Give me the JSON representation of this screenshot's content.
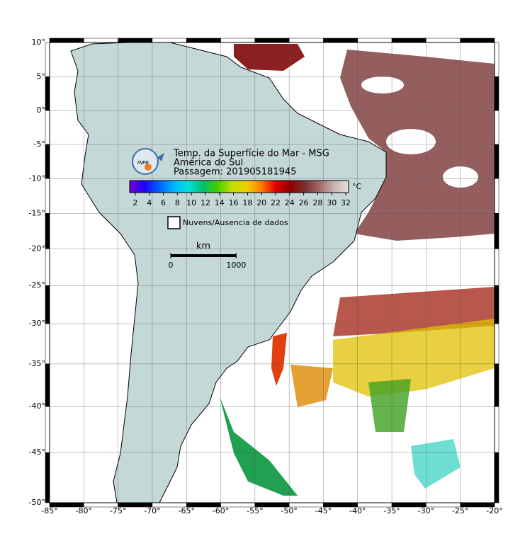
{
  "map": {
    "xlim": [
      -85,
      -20
    ],
    "ylim": [
      -50,
      10
    ],
    "grid": true,
    "lon_ticks": [
      {
        "value": -85,
        "label": "-85°"
      },
      {
        "value": -80,
        "label": "-80°"
      },
      {
        "value": -75,
        "label": "-75°"
      },
      {
        "value": -70,
        "label": "-70°"
      },
      {
        "value": -65,
        "label": "-65°"
      },
      {
        "value": -60,
        "label": "-60°"
      },
      {
        "value": -55,
        "label": "-55°"
      },
      {
        "value": -50,
        "label": "-50°"
      },
      {
        "value": -45,
        "label": "-45°"
      },
      {
        "value": -40,
        "label": "-40°"
      },
      {
        "value": -35,
        "label": "-35°"
      },
      {
        "value": -30,
        "label": "-30°"
      },
      {
        "value": -25,
        "label": "-25°"
      },
      {
        "value": -20,
        "label": "-20°"
      }
    ],
    "lat_ticks": [
      {
        "value": 10,
        "label": "10°"
      },
      {
        "value": 5,
        "label": "5°"
      },
      {
        "value": 0,
        "label": "0°"
      },
      {
        "value": -5,
        "label": "-5°"
      },
      {
        "value": -10,
        "label": "-10°"
      },
      {
        "value": -15,
        "label": "-15°"
      },
      {
        "value": -20,
        "label": "-20°"
      },
      {
        "value": -25,
        "label": "-25°"
      },
      {
        "value": -30,
        "label": "-30°"
      },
      {
        "value": -35,
        "label": "-35°"
      },
      {
        "value": -40,
        "label": "-40°"
      },
      {
        "value": -45,
        "label": "-45°"
      },
      {
        "value": -50,
        "label": "-50°"
      }
    ]
  },
  "legend": {
    "logo": "INPE",
    "title": "Temp. da Superfície do Mar - MSG",
    "region": "América do Sul",
    "pass": "Passagem: 201905181945",
    "colorbar": {
      "unit": "°C",
      "range": [
        1.2,
        32.4
      ],
      "ticks": [
        2,
        4,
        6,
        8,
        10,
        12,
        14,
        16,
        18,
        20,
        22,
        24,
        26,
        28,
        30,
        32
      ],
      "colors": [
        "#7000d0",
        "#2000ff",
        "#0060ff",
        "#00b0ff",
        "#00e0e0",
        "#00c070",
        "#40d000",
        "#c0e000",
        "#f0d000",
        "#ff8000",
        "#e00000",
        "#900000",
        "#7a3030",
        "#a06a6a",
        "#c8b0b0",
        "#e8e0e0"
      ]
    },
    "no_data": "Nuvens/Ausencia de dados",
    "scale": {
      "unit": "km",
      "ticks": [
        0,
        1000
      ]
    }
  }
}
